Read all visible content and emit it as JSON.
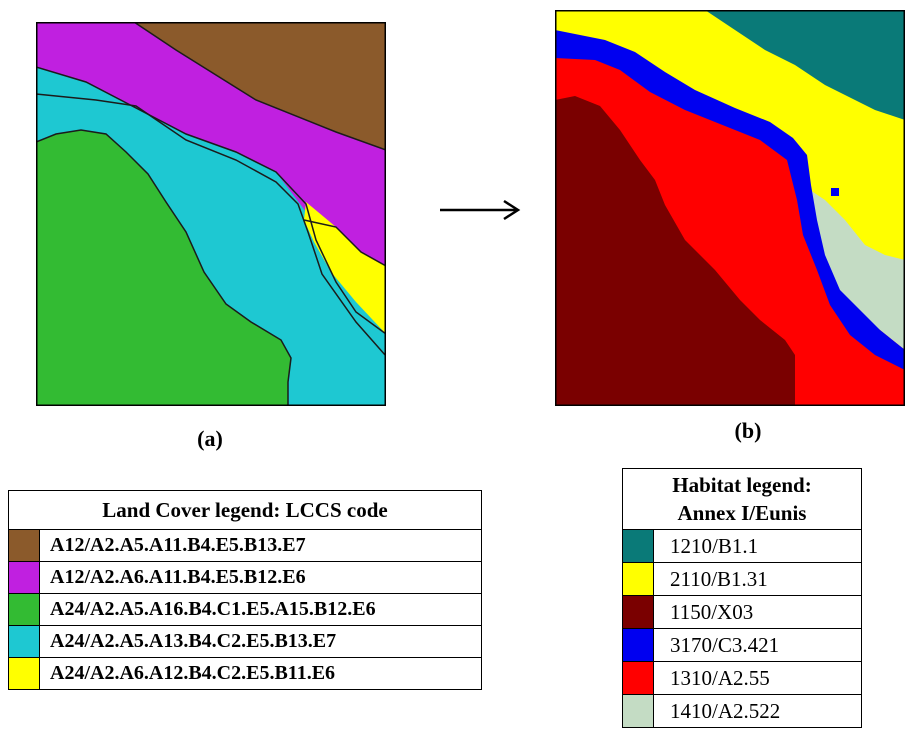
{
  "panels": {
    "a": {
      "caption": "(a)"
    },
    "b": {
      "caption": "(b)"
    }
  },
  "land_cover_legend": {
    "title": "Land Cover legend: LCCS code",
    "items": [
      {
        "color": "#8B5A2B",
        "code": "A12/A2.A5.A11.B4.E5.B13.E7"
      },
      {
        "color": "#C020E0",
        "code": "A12/A2.A6.A11.B4.E5.B12.E6"
      },
      {
        "color": "#33BB33",
        "code": "A24/A2.A5.A16.B4.C1.E5.A15.B12.E6"
      },
      {
        "color": "#1EC8D2",
        "code": "A24/A2.A5.A13.B4.C2.E5.B13.E7"
      },
      {
        "color": "#FFFF00",
        "code": "A24/A2.A6.A12.B4.C2.E5.B11.E6"
      }
    ]
  },
  "habitat_legend": {
    "title_line1": "Habitat legend:",
    "title_line2": "Annex I/Eunis",
    "items": [
      {
        "color": "#0A7A78",
        "code": "1210/B1.1"
      },
      {
        "color": "#FFFF00",
        "code": "2110/B1.31"
      },
      {
        "color": "#7A0000",
        "code": "1150/X03"
      },
      {
        "color": "#0000F0",
        "code": "3170/C3.421"
      },
      {
        "color": "#FF0000",
        "code": "1310/A2.55"
      },
      {
        "color": "#C4DCC4",
        "code": "1410/A2.522"
      }
    ]
  },
  "arrow_icon": "right-arrow-icon"
}
